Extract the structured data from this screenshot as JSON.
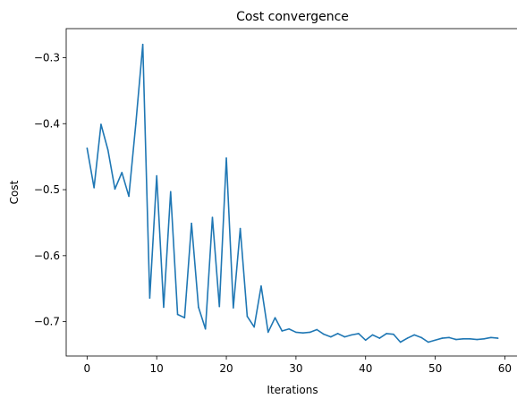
{
  "chart_data": {
    "type": "line",
    "title": "Cost convergence",
    "xlabel": "Iterations",
    "ylabel": "Cost",
    "xlim": [
      -3,
      62
    ],
    "ylim": [
      -0.752,
      -0.256
    ],
    "xticks": [
      0,
      10,
      20,
      30,
      40,
      50,
      60
    ],
    "xtick_labels": [
      "0",
      "10",
      "20",
      "30",
      "40",
      "50",
      "60"
    ],
    "yticks": [
      -0.7,
      -0.6,
      -0.5,
      -0.4,
      -0.3
    ],
    "ytick_labels": [
      "−0.7",
      "−0.6",
      "−0.5",
      "−0.4",
      "−0.3"
    ],
    "grid": false,
    "line_color": "#1f77b4",
    "series": [
      {
        "x": [
          0,
          1,
          2,
          3,
          4,
          5,
          6,
          7,
          8,
          9,
          10,
          11,
          12,
          13,
          14,
          15,
          16,
          17,
          18,
          19,
          20,
          21,
          22,
          23,
          24,
          25,
          26,
          27,
          28,
          29,
          30,
          31,
          32,
          33,
          34,
          35,
          36,
          37,
          38,
          39,
          40,
          41,
          42,
          43,
          44,
          45,
          46,
          47,
          48,
          49,
          50,
          51,
          52,
          53,
          54,
          55,
          56,
          57,
          58,
          59
        ],
        "values": [
          -0.437,
          -0.497,
          -0.401,
          -0.44,
          -0.499,
          -0.474,
          -0.51,
          -0.4,
          -0.28,
          -0.664,
          -0.479,
          -0.678,
          -0.503,
          -0.689,
          -0.694,
          -0.551,
          -0.678,
          -0.711,
          -0.542,
          -0.677,
          -0.452,
          -0.679,
          -0.559,
          -0.692,
          -0.708,
          -0.646,
          -0.716,
          -0.694,
          -0.714,
          -0.711,
          -0.716,
          -0.717,
          -0.716,
          -0.712,
          -0.719,
          -0.723,
          -0.718,
          -0.723,
          -0.72,
          -0.718,
          -0.728,
          -0.72,
          -0.725,
          -0.718,
          -0.719,
          -0.731,
          -0.725,
          -0.72,
          -0.724,
          -0.731,
          -0.728,
          -0.725,
          -0.724,
          -0.727,
          -0.726,
          -0.726,
          -0.727,
          -0.726,
          -0.724,
          -0.725
        ]
      }
    ]
  }
}
